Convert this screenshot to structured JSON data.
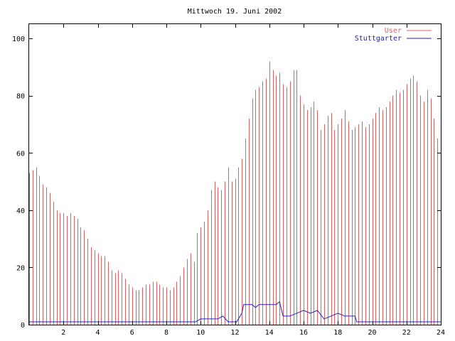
{
  "chart_data": {
    "type": "bar",
    "title": "Mittwoch 19. Juni 2002",
    "xlabel": "",
    "ylabel": "",
    "xlim": [
      0,
      24
    ],
    "ylim": [
      0,
      105
    ],
    "grid": false,
    "legend_position": "top-right",
    "x_ticks": [
      2,
      4,
      6,
      8,
      10,
      12,
      14,
      16,
      18,
      20,
      22,
      24
    ],
    "x_tick_labels": [
      "2",
      "4",
      "6",
      "8",
      "10",
      "12",
      "14",
      "16",
      "18",
      "20",
      "22",
      "24"
    ],
    "y_ticks": [
      0,
      20,
      40,
      60,
      80,
      100
    ],
    "y_tick_labels": [
      "0",
      "20",
      "40",
      "60",
      "80",
      "100"
    ],
    "series": [
      {
        "name": "User",
        "style": "impulses",
        "color": "#e06060",
        "x": [
          0.0,
          0.2,
          0.4,
          0.6,
          0.8,
          1.0,
          1.2,
          1.4,
          1.6,
          1.8,
          2.0,
          2.2,
          2.4,
          2.6,
          2.8,
          3.0,
          3.2,
          3.4,
          3.6,
          3.8,
          4.0,
          4.2,
          4.4,
          4.6,
          4.8,
          5.0,
          5.2,
          5.4,
          5.6,
          5.8,
          6.0,
          6.2,
          6.4,
          6.6,
          6.8,
          7.0,
          7.2,
          7.4,
          7.6,
          7.8,
          8.0,
          8.2,
          8.4,
          8.6,
          8.8,
          9.0,
          9.2,
          9.4,
          9.6,
          9.8,
          10.0,
          10.2,
          10.4,
          10.6,
          10.8,
          11.0,
          11.2,
          11.4,
          11.6,
          11.8,
          12.0,
          12.2,
          12.4,
          12.6,
          12.8,
          13.0,
          13.2,
          13.4,
          13.6,
          13.8,
          14.0,
          14.2,
          14.4,
          14.6,
          14.8,
          15.0,
          15.2,
          15.4,
          15.6,
          15.8,
          16.0,
          16.2,
          16.4,
          16.6,
          16.8,
          17.0,
          17.2,
          17.4,
          17.6,
          17.8,
          18.0,
          18.2,
          18.4,
          18.6,
          18.8,
          19.0,
          19.2,
          19.4,
          19.6,
          19.8,
          20.0,
          20.2,
          20.4,
          20.6,
          20.8,
          21.0,
          21.2,
          21.4,
          21.6,
          21.8,
          22.0,
          22.2,
          22.4,
          22.6,
          22.8,
          23.0,
          23.2,
          23.4,
          23.6,
          23.8,
          24.0
        ],
        "values": [
          53,
          54,
          55,
          52,
          49,
          48,
          46,
          43,
          40,
          39,
          39,
          38,
          39,
          38,
          37,
          34,
          33,
          30,
          27,
          26,
          25,
          24,
          24,
          22,
          19,
          18,
          19,
          18,
          16,
          14,
          13,
          12,
          12,
          13,
          14,
          14,
          15,
          15,
          14,
          13,
          13,
          12,
          13,
          15,
          17,
          20,
          23,
          25,
          22,
          32,
          34,
          36,
          40,
          47,
          50,
          48,
          47,
          50,
          55,
          50,
          51,
          55,
          58,
          65,
          72,
          79,
          82,
          83,
          85,
          86,
          92,
          89,
          87,
          88,
          84,
          83,
          85,
          89,
          89,
          80,
          77,
          75,
          76,
          78,
          75,
          68,
          70,
          73,
          74,
          68,
          70,
          72,
          75,
          71,
          68,
          69,
          70,
          71,
          69,
          70,
          72,
          74,
          76,
          75,
          76,
          78,
          80,
          82,
          81,
          82,
          84,
          86,
          87,
          85,
          80,
          78,
          82,
          79,
          72,
          65,
          63
        ]
      },
      {
        "name": "Stuttgarter",
        "style": "line",
        "color": "#2020c0",
        "points": [
          [
            0,
            1
          ],
          [
            9,
            1
          ],
          [
            9.7,
            1
          ],
          [
            10,
            2
          ],
          [
            11,
            2
          ],
          [
            11.3,
            3
          ],
          [
            11.6,
            1
          ],
          [
            12.1,
            1
          ],
          [
            12.4,
            4
          ],
          [
            12.5,
            7
          ],
          [
            13,
            7
          ],
          [
            13.2,
            6
          ],
          [
            13.4,
            7
          ],
          [
            14.4,
            7
          ],
          [
            14.6,
            8
          ],
          [
            14.8,
            3
          ],
          [
            15.2,
            3
          ],
          [
            15.6,
            4
          ],
          [
            16,
            5
          ],
          [
            16.4,
            4
          ],
          [
            16.8,
            5
          ],
          [
            17.2,
            2
          ],
          [
            17.6,
            3
          ],
          [
            18,
            4
          ],
          [
            18.4,
            3
          ],
          [
            19,
            3
          ],
          [
            19.1,
            1
          ],
          [
            24,
            1
          ]
        ]
      }
    ]
  }
}
